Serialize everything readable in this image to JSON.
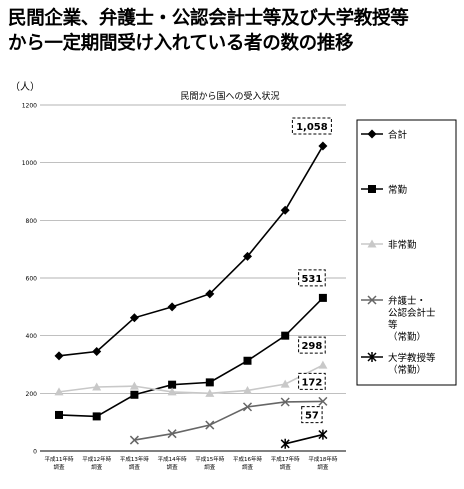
{
  "heading": {
    "line1": "民間企業、弁護士・公認会計士等及び大学教授等",
    "line2": "から一定期間受け入れている者の数の推移"
  },
  "chart_data": {
    "type": "line",
    "title": "民間から国への受入状況",
    "ylabel": "（人）",
    "ylim": [
      0,
      1200
    ],
    "yticks": [
      0,
      200,
      400,
      600,
      800,
      1000,
      1200
    ],
    "grid": true,
    "legend_position": "right",
    "categories": [
      [
        "平成11年時",
        "調査"
      ],
      [
        "平成12年時",
        "調査"
      ],
      [
        "平成13年時",
        "調査"
      ],
      [
        "平成14年時",
        "調査"
      ],
      [
        "平成15年時",
        "調査"
      ],
      [
        "平成16年時",
        "調査"
      ],
      [
        "平成17年時",
        "調査"
      ],
      [
        "平成18年時",
        "調査"
      ]
    ],
    "series": [
      {
        "name": "合計",
        "marker": "diamond",
        "color": "#000000",
        "values": [
          330,
          345,
          462,
          500,
          545,
          675,
          835,
          1058
        ]
      },
      {
        "name": "常勤",
        "marker": "square",
        "color": "#000000",
        "values": [
          125,
          120,
          195,
          230,
          238,
          313,
          400,
          531
        ]
      },
      {
        "name": "非常勤",
        "marker": "triangle",
        "color": "#c8c8c8",
        "values": [
          205,
          222,
          225,
          205,
          200,
          210,
          232,
          298
        ]
      },
      {
        "name": "弁護士・公認会計士等（常勤）",
        "marker": "x",
        "color": "#666666",
        "values": [
          null,
          null,
          38,
          60,
          90,
          153,
          170,
          172
        ]
      },
      {
        "name": "大学教授等（常勤）",
        "marker": "asterisk",
        "color": "#000000",
        "values": [
          null,
          null,
          null,
          null,
          null,
          null,
          25,
          57
        ]
      }
    ],
    "legend_lines": [
      [
        "合計"
      ],
      [
        "常勤"
      ],
      [
        "非常勤"
      ],
      [
        "弁護士・",
        "公認会計士",
        "等",
        "（常勤）"
      ],
      [
        "大学教授等",
        "（常勤）"
      ]
    ],
    "annotations": [
      {
        "text": "1,058",
        "category_index": 7,
        "value": 1058
      },
      {
        "text": "531",
        "category_index": 7,
        "value": 531
      },
      {
        "text": "298",
        "category_index": 7,
        "value": 298
      },
      {
        "text": "172",
        "category_index": 7,
        "value": 172
      },
      {
        "text": "57",
        "category_index": 7,
        "value": 57
      }
    ]
  }
}
